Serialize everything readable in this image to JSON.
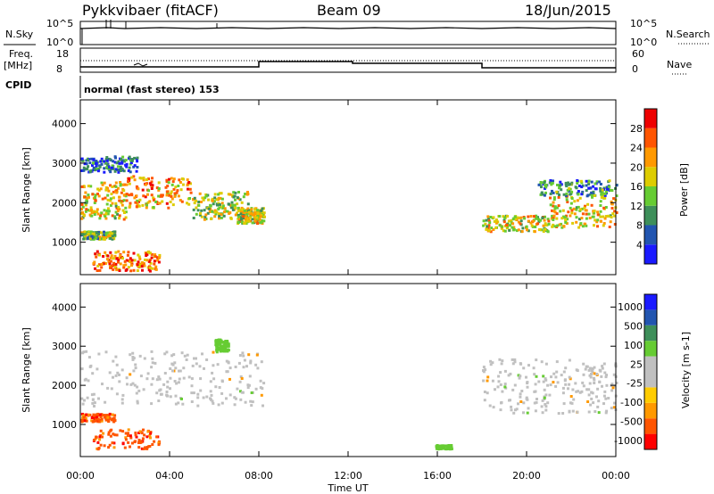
{
  "header": {
    "station": "Pykkvibaer (fitACF)",
    "beam": "Beam 09",
    "date": "18/Jun/2015"
  },
  "panels": {
    "nsky": {
      "left_label": "N.Sky",
      "tick_top": "10^5",
      "tick_bottom": "10^0",
      "right_label": "N.Search",
      "right_tick_top": "10^5",
      "right_tick_bottom": "10^0"
    },
    "freq": {
      "left_label_1": "Freq.",
      "left_label_2": "[MHz]",
      "tick_top": "18",
      "tick_bottom": "8",
      "right_label": "Nave",
      "right_tick_top": "60",
      "right_tick_bottom": "0"
    },
    "cpid": {
      "label": "CPID",
      "text": "normal (fast stereo) 153"
    }
  },
  "colors": {
    "power": [
      "#1a1aff",
      "#2255b0",
      "#3e8f5a",
      "#66cc33",
      "#ddcc00",
      "#ff9900",
      "#ff5500",
      "#ee0000"
    ],
    "velocity": [
      "#ff0000",
      "#ff5500",
      "#ff9900",
      "#ffcc00",
      "#c0c0c0",
      "#c0c0c0",
      "#66cc33",
      "#3e8f5a",
      "#2255b0",
      "#1a1aff"
    ]
  },
  "chart_data": [
    {
      "type": "heatmap",
      "title": "",
      "xlabel": "Time UT",
      "ylabel": "Slant Range [km]",
      "xlim": [
        "00:00",
        "24:00"
      ],
      "ylim": [
        180,
        4600
      ],
      "x_ticks": [
        "00:00",
        "04:00",
        "08:00",
        "12:00",
        "16:00",
        "20:00",
        "00:00"
      ],
      "y_ticks": [
        1000,
        2000,
        3000,
        4000
      ],
      "colorbar": {
        "label": "Power [dB]",
        "range": [
          0,
          32
        ],
        "ticks": [
          4,
          8,
          12,
          16,
          20,
          24,
          28
        ]
      },
      "regions": [
        {
          "start_h": 0.0,
          "end_h": 2.0,
          "range_km": [
            1600,
            2550
          ],
          "level": 0.6
        },
        {
          "start_h": 2.0,
          "end_h": 5.0,
          "range_km": [
            1900,
            2700
          ],
          "level": 0.7
        },
        {
          "start_h": 5.0,
          "end_h": 7.5,
          "range_km": [
            1600,
            2300
          ],
          "level": 0.5
        },
        {
          "start_h": 7.0,
          "end_h": 8.2,
          "range_km": [
            1500,
            1900
          ],
          "level": 0.55
        },
        {
          "start_h": 0.0,
          "end_h": 2.5,
          "range_km": [
            2800,
            3200
          ],
          "level": 0.2
        },
        {
          "start_h": 0.0,
          "end_h": 1.5,
          "range_km": [
            1100,
            1300
          ],
          "level": 0.45
        },
        {
          "start_h": 0.5,
          "end_h": 3.5,
          "range_km": [
            300,
            800
          ],
          "level": 0.8
        },
        {
          "start_h": 18.0,
          "end_h": 21.0,
          "range_km": [
            1300,
            1700
          ],
          "level": 0.55
        },
        {
          "start_h": 21.0,
          "end_h": 24.0,
          "range_km": [
            1400,
            2200
          ],
          "level": 0.6
        },
        {
          "start_h": 20.5,
          "end_h": 24.0,
          "range_km": [
            2200,
            2600
          ],
          "level": 0.3
        }
      ]
    },
    {
      "type": "heatmap",
      "title": "",
      "xlabel": "Time UT",
      "ylabel": "Slant Range [km]",
      "xlim": [
        "00:00",
        "24:00"
      ],
      "ylim": [
        180,
        4600
      ],
      "x_ticks": [
        "00:00",
        "04:00",
        "08:00",
        "12:00",
        "16:00",
        "20:00",
        "00:00"
      ],
      "y_ticks": [
        1000,
        2000,
        3000,
        4000
      ],
      "colorbar": {
        "label": "Velocity [m s-1]",
        "ticks": [
          "1000",
          "500",
          "100",
          "25",
          "-25",
          "-100",
          "-500",
          "-1000"
        ]
      },
      "regions": [
        {
          "start_h": 0.0,
          "end_h": 8.2,
          "range_km": [
            1500,
            2900
          ],
          "velocity": 0
        },
        {
          "start_h": 18.0,
          "end_h": 24.0,
          "range_km": [
            1300,
            2700
          ],
          "velocity": 0
        },
        {
          "start_h": 0.0,
          "end_h": 1.5,
          "range_km": [
            1100,
            1300
          ],
          "velocity": -300
        },
        {
          "start_h": 0.5,
          "end_h": 3.5,
          "range_km": [
            400,
            900
          ],
          "velocity": -300
        },
        {
          "start_h": 6.0,
          "end_h": 6.6,
          "range_km": [
            2900,
            3200
          ],
          "velocity": 150
        },
        {
          "start_h": 15.9,
          "end_h": 16.6,
          "range_km": [
            400,
            500
          ],
          "velocity": 120
        }
      ]
    }
  ]
}
